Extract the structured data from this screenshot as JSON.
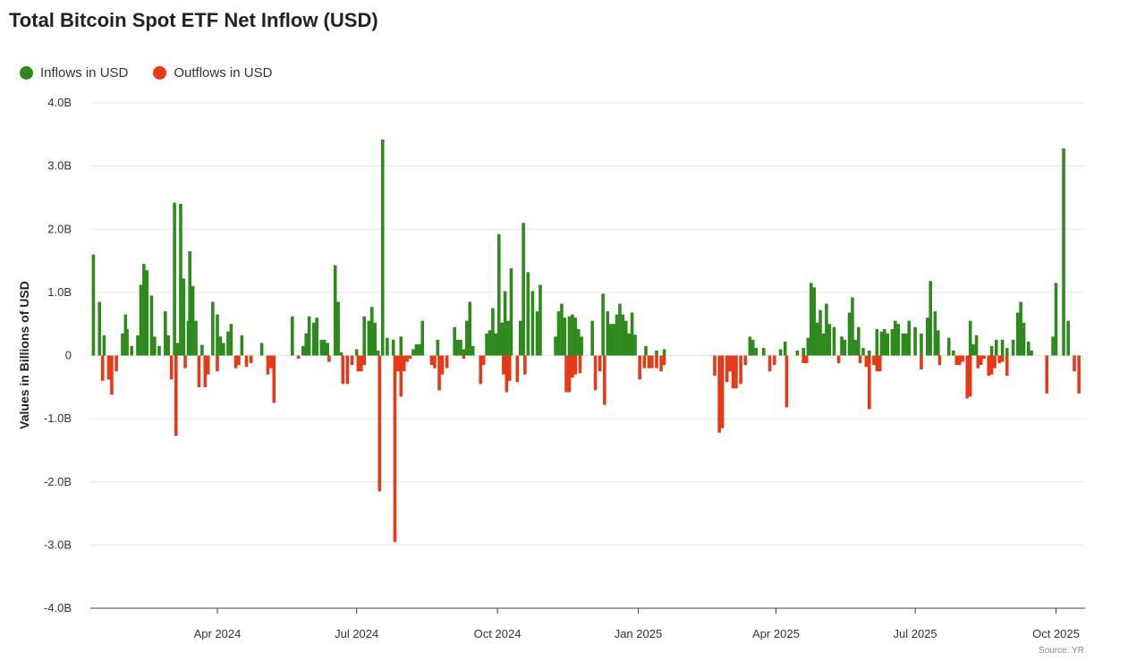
{
  "chart_data": {
    "type": "bar",
    "title": "Total Bitcoin Spot ETF Net Inflow (USD)",
    "ylabel": "Values in Billions of USD",
    "xlabel": "",
    "source": "Source: YR",
    "ylim": [
      -4,
      4
    ],
    "y_ticks": [
      {
        "value": 4,
        "label": "4.0B"
      },
      {
        "value": 3,
        "label": "3.0B"
      },
      {
        "value": 2,
        "label": "2.0B"
      },
      {
        "value": 1,
        "label": "1.0B"
      },
      {
        "value": 0,
        "label": "0"
      },
      {
        "value": -1,
        "label": "-1.0B"
      },
      {
        "value": -2,
        "label": "-2.0B"
      },
      {
        "value": -3,
        "label": "-3.0B"
      },
      {
        "value": -4,
        "label": "-4.0B"
      }
    ],
    "x_range": [
      "2024-01-11",
      "2025-10-20"
    ],
    "x_ticks": [
      {
        "date": "2024-04-01",
        "label": "Apr 2024"
      },
      {
        "date": "2024-07-01",
        "label": "Jul 2024"
      },
      {
        "date": "2024-10-01",
        "label": "Oct 2024"
      },
      {
        "date": "2025-01-01",
        "label": "Jan 2025"
      },
      {
        "date": "2025-04-01",
        "label": "Apr 2025"
      },
      {
        "date": "2025-07-01",
        "label": "Jul 2025"
      },
      {
        "date": "2025-10-01",
        "label": "Oct 2025"
      }
    ],
    "grid": true,
    "legend_position": "top-left",
    "series": [
      {
        "name": "Inflows in USD",
        "color": "#2f8a1e",
        "points": [
          [
            "2024-01-11",
            1.6
          ],
          [
            "2024-01-15",
            0.85
          ],
          [
            "2024-01-18",
            0.32
          ],
          [
            "2024-01-30",
            0.35
          ],
          [
            "2024-02-01",
            0.65
          ],
          [
            "2024-02-02",
            0.42
          ],
          [
            "2024-02-05",
            0.15
          ],
          [
            "2024-02-09",
            0.32
          ],
          [
            "2024-02-11",
            1.12
          ],
          [
            "2024-02-13",
            1.45
          ],
          [
            "2024-02-15",
            1.35
          ],
          [
            "2024-02-18",
            0.95
          ],
          [
            "2024-02-20",
            0.3
          ],
          [
            "2024-02-23",
            0.15
          ],
          [
            "2024-02-27",
            0.7
          ],
          [
            "2024-02-29",
            0.32
          ],
          [
            "2024-03-04",
            2.42
          ],
          [
            "2024-03-06",
            0.2
          ],
          [
            "2024-03-08",
            2.4
          ],
          [
            "2024-03-10",
            1.22
          ],
          [
            "2024-03-13",
            0.55
          ],
          [
            "2024-03-14",
            1.65
          ],
          [
            "2024-03-16",
            1.1
          ],
          [
            "2024-03-18",
            0.55
          ],
          [
            "2024-03-22",
            0.17
          ],
          [
            "2024-03-29",
            0.85
          ],
          [
            "2024-04-01",
            0.65
          ],
          [
            "2024-04-03",
            0.3
          ],
          [
            "2024-04-05",
            0.2
          ],
          [
            "2024-04-08",
            0.38
          ],
          [
            "2024-04-10",
            0.5
          ],
          [
            "2024-04-17",
            0.32
          ],
          [
            "2024-04-30",
            0.2
          ],
          [
            "2024-05-20",
            0.62
          ],
          [
            "2024-05-27",
            0.15
          ],
          [
            "2024-05-29",
            0.35
          ],
          [
            "2024-05-31",
            0.62
          ],
          [
            "2024-06-03",
            0.52
          ],
          [
            "2024-06-05",
            0.6
          ],
          [
            "2024-06-08",
            0.25
          ],
          [
            "2024-06-10",
            0.25
          ],
          [
            "2024-06-12",
            0.2
          ],
          [
            "2024-06-17",
            1.43
          ],
          [
            "2024-06-19",
            0.85
          ],
          [
            "2024-06-21",
            0.05
          ],
          [
            "2024-07-01",
            0.1
          ],
          [
            "2024-07-06",
            0.62
          ],
          [
            "2024-07-09",
            0.55
          ],
          [
            "2024-07-11",
            0.77
          ],
          [
            "2024-07-13",
            0.52
          ],
          [
            "2024-07-15",
            0.08
          ],
          [
            "2024-07-18",
            3.42
          ],
          [
            "2024-07-21",
            0.28
          ],
          [
            "2024-07-25",
            0.25
          ],
          [
            "2024-07-30",
            0.3
          ],
          [
            "2024-08-07",
            0.1
          ],
          [
            "2024-08-09",
            0.18
          ],
          [
            "2024-08-11",
            0.18
          ],
          [
            "2024-08-13",
            0.55
          ],
          [
            "2024-08-23",
            0.25
          ],
          [
            "2024-09-03",
            0.45
          ],
          [
            "2024-09-05",
            0.25
          ],
          [
            "2024-09-07",
            0.25
          ],
          [
            "2024-09-09",
            0.1
          ],
          [
            "2024-09-11",
            0.55
          ],
          [
            "2024-09-13",
            0.85
          ],
          [
            "2024-09-15",
            0.15
          ],
          [
            "2024-09-24",
            0.35
          ],
          [
            "2024-09-26",
            0.4
          ],
          [
            "2024-09-28",
            0.75
          ],
          [
            "2024-09-30",
            0.35
          ],
          [
            "2024-10-02",
            1.92
          ],
          [
            "2024-10-04",
            0.52
          ],
          [
            "2024-10-06",
            1.02
          ],
          [
            "2024-10-08",
            0.55
          ],
          [
            "2024-10-10",
            1.38
          ],
          [
            "2024-10-16",
            0.55
          ],
          [
            "2024-10-18",
            2.1
          ],
          [
            "2024-10-21",
            1.32
          ],
          [
            "2024-10-24",
            1.02
          ],
          [
            "2024-10-27",
            0.7
          ],
          [
            "2024-10-29",
            1.12
          ],
          [
            "2024-11-08",
            0.3
          ],
          [
            "2024-11-10",
            0.7
          ],
          [
            "2024-11-12",
            0.82
          ],
          [
            "2024-11-14",
            0.6
          ],
          [
            "2024-11-17",
            0.62
          ],
          [
            "2024-11-19",
            0.65
          ],
          [
            "2024-11-21",
            0.6
          ],
          [
            "2024-11-23",
            0.42
          ],
          [
            "2024-11-25",
            0.3
          ],
          [
            "2024-12-02",
            0.55
          ],
          [
            "2024-12-09",
            0.98
          ],
          [
            "2024-12-12",
            0.7
          ],
          [
            "2024-12-14",
            0.5
          ],
          [
            "2024-12-16",
            0.5
          ],
          [
            "2024-12-18",
            0.65
          ],
          [
            "2024-12-20",
            0.82
          ],
          [
            "2024-12-22",
            0.65
          ],
          [
            "2024-12-24",
            0.55
          ],
          [
            "2024-12-26",
            0.35
          ],
          [
            "2024-12-28",
            0.68
          ],
          [
            "2024-12-30",
            0.33
          ],
          [
            "2025-01-06",
            0.15
          ],
          [
            "2025-01-13",
            0.08
          ],
          [
            "2025-01-18",
            0.1
          ],
          [
            "2025-03-15",
            0.3
          ],
          [
            "2025-03-17",
            0.25
          ],
          [
            "2025-03-19",
            0.12
          ],
          [
            "2025-03-24",
            0.12
          ],
          [
            "2025-04-04",
            0.1
          ],
          [
            "2025-04-07",
            0.22
          ],
          [
            "2025-04-15",
            0.08
          ],
          [
            "2025-04-19",
            0.12
          ],
          [
            "2025-04-22",
            0.28
          ],
          [
            "2025-04-24",
            1.15
          ],
          [
            "2025-04-26",
            1.08
          ],
          [
            "2025-04-28",
            0.52
          ],
          [
            "2025-04-30",
            0.72
          ],
          [
            "2025-05-02",
            0.35
          ],
          [
            "2025-05-04",
            0.82
          ],
          [
            "2025-05-06",
            0.5
          ],
          [
            "2025-05-09",
            0.45
          ],
          [
            "2025-05-14",
            0.3
          ],
          [
            "2025-05-16",
            0.25
          ],
          [
            "2025-05-19",
            0.68
          ],
          [
            "2025-05-21",
            0.92
          ],
          [
            "2025-05-23",
            0.25
          ],
          [
            "2025-05-25",
            0.45
          ],
          [
            "2025-05-28",
            0.12
          ],
          [
            "2025-06-01",
            0.08
          ],
          [
            "2025-06-06",
            0.42
          ],
          [
            "2025-06-09",
            0.38
          ],
          [
            "2025-06-11",
            0.42
          ],
          [
            "2025-06-13",
            0.35
          ],
          [
            "2025-06-16",
            0.42
          ],
          [
            "2025-06-18",
            0.55
          ],
          [
            "2025-06-20",
            0.5
          ],
          [
            "2025-06-23",
            0.35
          ],
          [
            "2025-06-25",
            0.35
          ],
          [
            "2025-06-27",
            0.55
          ],
          [
            "2025-07-01",
            0.45
          ],
          [
            "2025-07-05",
            0.35
          ],
          [
            "2025-07-09",
            0.6
          ],
          [
            "2025-07-11",
            1.18
          ],
          [
            "2025-07-14",
            0.7
          ],
          [
            "2025-07-16",
            0.4
          ],
          [
            "2025-07-23",
            0.28
          ],
          [
            "2025-07-26",
            0.08
          ],
          [
            "2025-08-06",
            0.55
          ],
          [
            "2025-08-08",
            0.18
          ],
          [
            "2025-08-10",
            0.32
          ],
          [
            "2025-08-20",
            0.15
          ],
          [
            "2025-08-23",
            0.25
          ],
          [
            "2025-08-27",
            0.25
          ],
          [
            "2025-08-30",
            0.12
          ],
          [
            "2025-09-03",
            0.25
          ],
          [
            "2025-09-06",
            0.68
          ],
          [
            "2025-09-08",
            0.85
          ],
          [
            "2025-09-10",
            0.52
          ],
          [
            "2025-09-13",
            0.22
          ],
          [
            "2025-09-15",
            0.08
          ],
          [
            "2025-09-29",
            0.3
          ],
          [
            "2025-10-01",
            1.15
          ],
          [
            "2025-10-06",
            3.28
          ],
          [
            "2025-10-09",
            0.55
          ]
        ]
      },
      {
        "name": "Outflows in USD",
        "color": "#e53917",
        "points": [
          [
            "2024-01-17",
            -0.4
          ],
          [
            "2024-01-21",
            -0.38
          ],
          [
            "2024-01-23",
            -0.62
          ],
          [
            "2024-01-26",
            -0.25
          ],
          [
            "2024-03-02",
            -0.38
          ],
          [
            "2024-03-05",
            -1.27
          ],
          [
            "2024-03-11",
            -0.2
          ],
          [
            "2024-03-20",
            -0.5
          ],
          [
            "2024-03-24",
            -0.5
          ],
          [
            "2024-03-26",
            -0.3
          ],
          [
            "2024-04-01",
            -0.25
          ],
          [
            "2024-04-13",
            -0.2
          ],
          [
            "2024-04-15",
            -0.15
          ],
          [
            "2024-04-20",
            -0.18
          ],
          [
            "2024-04-23",
            -0.12
          ],
          [
            "2024-05-04",
            -0.3
          ],
          [
            "2024-05-06",
            -0.2
          ],
          [
            "2024-05-08",
            -0.75
          ],
          [
            "2024-05-24",
            -0.05
          ],
          [
            "2024-06-13",
            -0.1
          ],
          [
            "2024-06-22",
            -0.45
          ],
          [
            "2024-06-25",
            -0.45
          ],
          [
            "2024-06-28",
            -0.15
          ],
          [
            "2024-07-02",
            -0.25
          ],
          [
            "2024-07-04",
            -0.25
          ],
          [
            "2024-07-06",
            -0.15
          ],
          [
            "2024-07-16",
            -2.15
          ],
          [
            "2024-07-26",
            -2.95
          ],
          [
            "2024-07-28",
            -0.25
          ],
          [
            "2024-07-30",
            -0.65
          ],
          [
            "2024-08-01",
            -0.25
          ],
          [
            "2024-08-03",
            -0.1
          ],
          [
            "2024-08-05",
            -0.05
          ],
          [
            "2024-08-19",
            -0.15
          ],
          [
            "2024-08-21",
            -0.2
          ],
          [
            "2024-08-24",
            -0.55
          ],
          [
            "2024-08-26",
            -0.3
          ],
          [
            "2024-08-29",
            -0.2
          ],
          [
            "2024-09-09",
            -0.05
          ],
          [
            "2024-09-20",
            -0.45
          ],
          [
            "2024-09-22",
            -0.15
          ],
          [
            "2024-10-05",
            -0.3
          ],
          [
            "2024-10-07",
            -0.58
          ],
          [
            "2024-10-09",
            -0.4
          ],
          [
            "2024-10-14",
            -0.42
          ],
          [
            "2024-10-19",
            -0.3
          ],
          [
            "2024-11-15",
            -0.58
          ],
          [
            "2024-11-17",
            -0.58
          ],
          [
            "2024-11-19",
            -0.35
          ],
          [
            "2024-11-21",
            -0.3
          ],
          [
            "2024-11-24",
            -0.28
          ],
          [
            "2024-12-04",
            -0.55
          ],
          [
            "2024-12-07",
            -0.25
          ],
          [
            "2024-12-10",
            -0.78
          ],
          [
            "2025-01-02",
            -0.38
          ],
          [
            "2025-01-05",
            -0.2
          ],
          [
            "2025-01-08",
            -0.2
          ],
          [
            "2025-01-10",
            -0.2
          ],
          [
            "2025-01-13",
            -0.2
          ],
          [
            "2025-01-16",
            -0.25
          ],
          [
            "2025-01-18",
            -0.15
          ],
          [
            "2025-02-20",
            -0.32
          ],
          [
            "2025-02-23",
            -1.22
          ],
          [
            "2025-02-25",
            -1.15
          ],
          [
            "2025-02-28",
            -0.42
          ],
          [
            "2025-03-02",
            -0.25
          ],
          [
            "2025-03-04",
            -0.52
          ],
          [
            "2025-03-06",
            -0.52
          ],
          [
            "2025-03-09",
            -0.45
          ],
          [
            "2025-03-12",
            -0.15
          ],
          [
            "2025-03-28",
            -0.25
          ],
          [
            "2025-03-31",
            -0.15
          ],
          [
            "2025-04-08",
            -0.82
          ],
          [
            "2025-04-19",
            -0.12
          ],
          [
            "2025-04-21",
            -0.12
          ],
          [
            "2025-05-12",
            -0.12
          ],
          [
            "2025-05-26",
            -0.12
          ],
          [
            "2025-05-30",
            -0.18
          ],
          [
            "2025-06-01",
            -0.85
          ],
          [
            "2025-06-04",
            -0.15
          ],
          [
            "2025-06-06",
            -0.25
          ],
          [
            "2025-06-08",
            -0.25
          ],
          [
            "2025-07-05",
            -0.22
          ],
          [
            "2025-07-17",
            -0.15
          ],
          [
            "2025-07-28",
            -0.15
          ],
          [
            "2025-07-30",
            -0.15
          ],
          [
            "2025-08-01",
            -0.1
          ],
          [
            "2025-08-04",
            -0.68
          ],
          [
            "2025-08-06",
            -0.65
          ],
          [
            "2025-08-11",
            -0.2
          ],
          [
            "2025-08-13",
            -0.15
          ],
          [
            "2025-08-15",
            -0.05
          ],
          [
            "2025-08-18",
            -0.32
          ],
          [
            "2025-08-20",
            -0.3
          ],
          [
            "2025-08-22",
            -0.2
          ],
          [
            "2025-08-25",
            -0.12
          ],
          [
            "2025-08-27",
            -0.1
          ],
          [
            "2025-08-30",
            -0.32
          ],
          [
            "2025-09-25",
            -0.6
          ],
          [
            "2025-10-13",
            -0.25
          ],
          [
            "2025-10-16",
            -0.6
          ]
        ]
      }
    ]
  }
}
